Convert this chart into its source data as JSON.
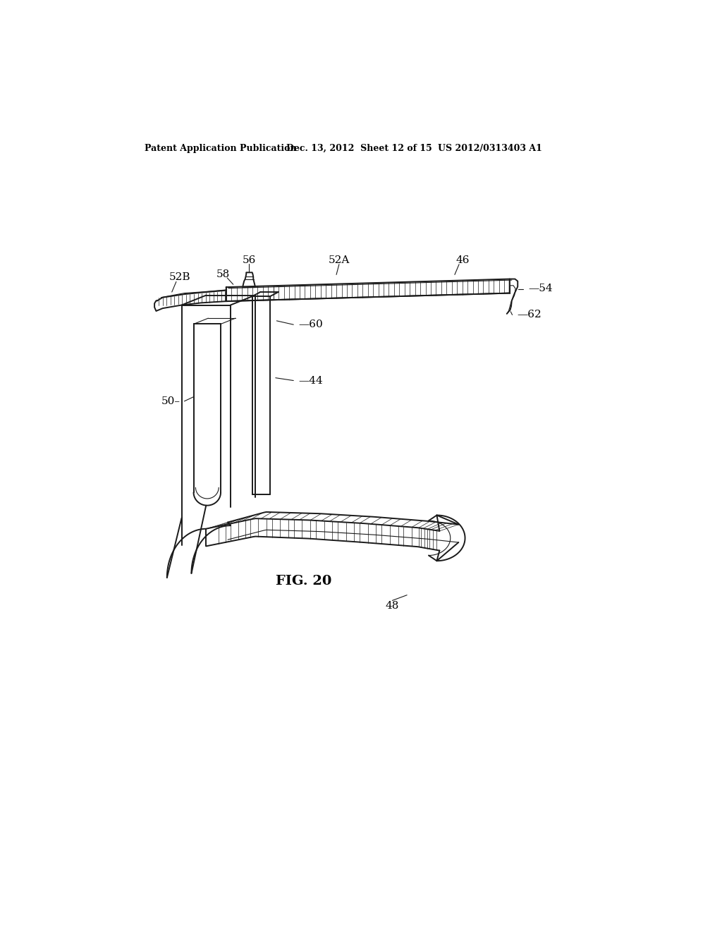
{
  "header_left": "Patent Application Publication",
  "header_middle": "Dec. 13, 2012  Sheet 12 of 15",
  "header_right": "US 2012/0313403 A1",
  "title": "FIG. 20",
  "background_color": "#ffffff",
  "line_color": "#1a1a1a",
  "lw_main": 1.4,
  "lw_thin": 0.8,
  "lw_hatch": 0.5
}
